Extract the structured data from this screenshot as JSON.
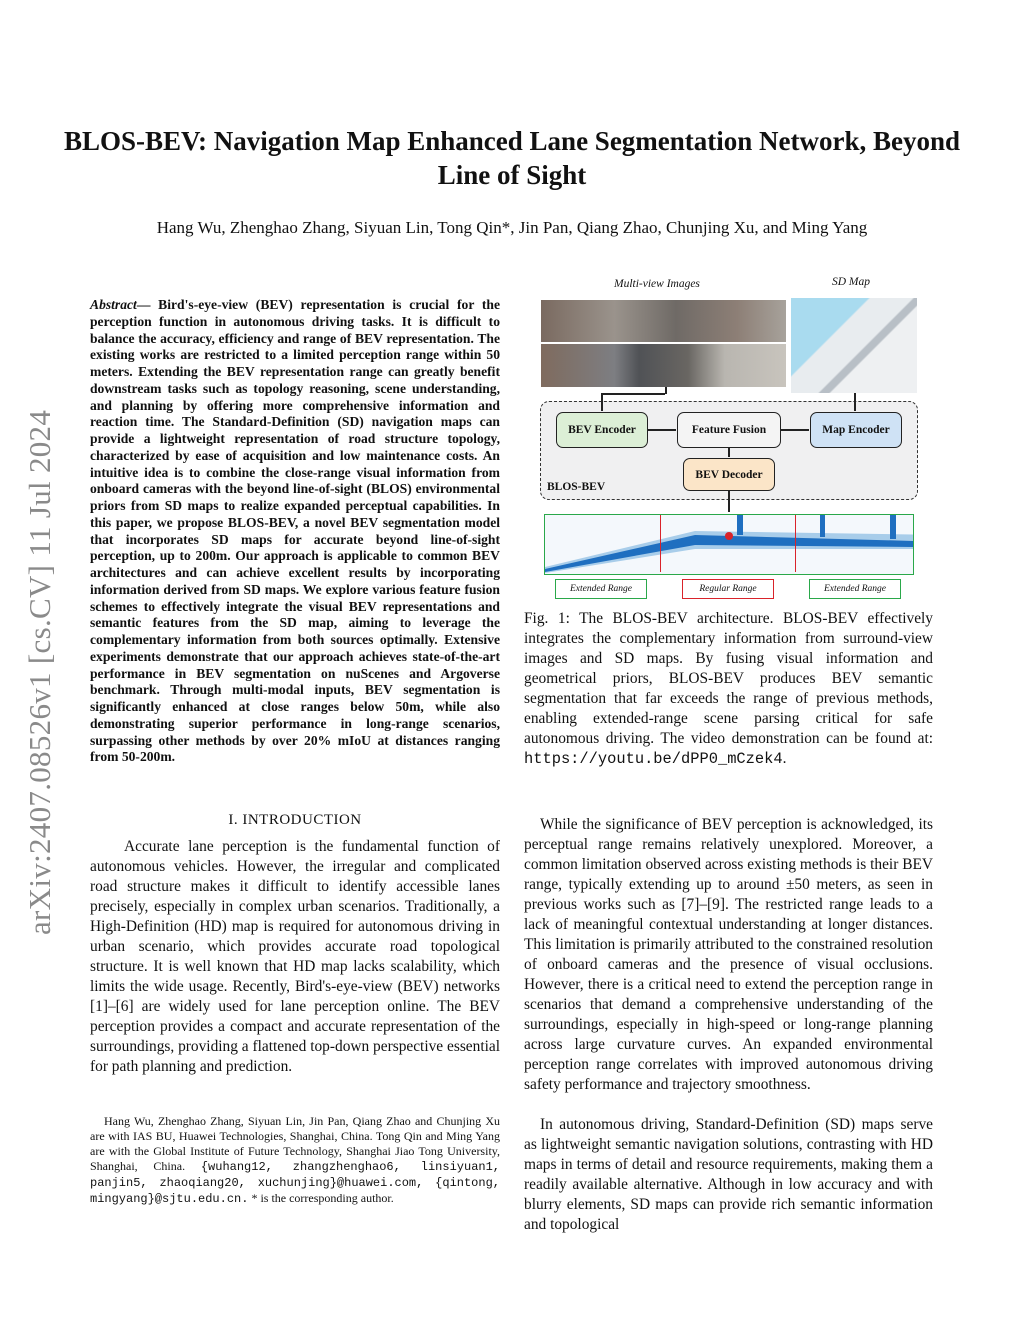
{
  "title": "BLOS-BEV: Navigation Map Enhanced Lane Segmentation Network, Beyond Line of Sight",
  "authors": "Hang Wu, Zhenghao Zhang, Siyuan Lin, Tong Qin*, Jin Pan, Qiang Zhao, Chunjing Xu, and Ming Yang",
  "arxiv_stamp": "arXiv:2407.08526v1  [cs.CV]  11 Jul 2024",
  "abstract": {
    "label": "Abstract",
    "text": "— Bird's-eye-view (BEV) representation is crucial for the perception function in autonomous driving tasks. It is difficult to balance the accuracy, efficiency and range of BEV representation. The existing works are restricted to a limited perception range within 50 meters. Extending the BEV representation range can greatly benefit downstream tasks such as topology reasoning, scene understanding, and planning by offering more comprehensive information and reaction time. The Standard-Definition (SD) navigation maps can provide a lightweight representation of road structure topology, characterized by ease of acquisition and low maintenance costs. An intuitive idea is to combine the close-range visual information from onboard cameras with the beyond line-of-sight (BLOS) environmental priors from SD maps to realize expanded perceptual capabilities. In this paper, we propose BLOS-BEV, a novel BEV segmentation model that incorporates SD maps for accurate beyond line-of-sight perception, up to 200m. Our approach is applicable to common BEV architectures and can achieve excellent results by incorporating information derived from SD maps. We explore various feature fusion schemes to effectively integrate the visual BEV representations and semantic features from the SD map, aiming to leverage the complementary information from both sources optimally. Extensive experiments demonstrate that our approach achieves state-of-the-art performance in BEV segmentation on nuScenes and Argoverse benchmark. Through multi-modal inputs, BEV segmentation is significantly enhanced at close ranges below 50m, while also demonstrating superior performance in long-range scenarios, surpassing other methods by over 20% mIoU at distances ranging from 50-200m."
  },
  "intro": {
    "heading": "I. INTRODUCTION",
    "text": "Accurate lane perception is the fundamental function of autonomous vehicles. However, the irregular and complicated road structure makes it difficult to identify accessible lanes precisely, especially in complex urban scenarios. Traditionally, a High-Definition (HD) map is required for autonomous driving in urban scenario, which provides accurate road topological structure. It is well known that HD map lacks scalability, which limits the wide usage. Recently, Bird's-eye-view (BEV) networks [1]–[6] are widely used for lane perception online. The BEV perception provides a compact and accurate representation of the surroundings, providing a flattened top-down perspective essential for path planning and prediction."
  },
  "footnote": {
    "text": "Hang Wu, Zhenghao Zhang, Siyuan Lin, Jin Pan, Qiang Zhao and Chunjing Xu are with IAS BU, Huawei Technologies, Shanghai, China. Tong Qin and Ming Yang are with the Global Institute of Future Technology, Shanghai Jiao Tong University, Shanghai, China. ",
    "emails": "{wuhang12, zhangzhenghao6, linsiyuan1, panjin5, zhaoqiang20, xuchunjing}@huawei.com, {qintong, mingyang}@sjtu.edu.cn.",
    "tail": " * is the corresponding author."
  },
  "figure": {
    "label_images": "Multi-view Images",
    "label_map": "SD Map",
    "bev_encoder": "BEV Encoder",
    "feature_fusion": "Feature Fusion",
    "map_encoder": "Map Encoder",
    "bev_decoder": "BEV Decoder",
    "group": "BLOS-BEV",
    "range_left": "Extended Range",
    "range_mid": "Regular Range",
    "range_right": "Extended Range",
    "colors": {
      "encoder": "#dcefd6",
      "fusion": "#f4f4f4",
      "map": "#cfe2f5",
      "decoder": "#fbe5c8",
      "extended": "#2aa84a",
      "regular": "#d9232a",
      "lane": "#1f6fc0"
    }
  },
  "caption": {
    "text": "Fig. 1: The BLOS-BEV architecture. BLOS-BEV effectively integrates the complementary information from surround-view images and SD maps. By fusing visual information and geometrical priors, BLOS-BEV produces BEV semantic segmentation that far exceeds the range of previous methods, enabling extended-range scene parsing critical for safe autonomous driving. The video demonstration can be found at: ",
    "url": "https://youtu.be/dPP0_mCzek4",
    "end": "."
  },
  "right_p1": "While the significance of BEV perception is acknowledged, its perceptual range remains relatively unexplored. Moreover, a common limitation observed across existing methods is their BEV range, typically extending up to around ±50 meters, as seen in previous works such as [7]–[9]. The restricted range leads to a lack of meaningful contextual understanding at longer distances. This limitation is primarily attributed to the constrained resolution of onboard cameras and the presence of visual occlusions. However, there is a critical need to extend the perception range in scenarios that demand a comprehensive understanding of the surroundings, especially in high-speed or long-range planning across large curvature curves. An expanded environmental perception range correlates with improved autonomous driving safety performance and trajectory smoothness.",
  "right_p2": "In autonomous driving, Standard-Definition (SD) maps serve as lightweight semantic navigation solutions, contrasting with HD maps in terms of detail and resource requirements, making them a readily available alternative. Although in low accuracy and with blurry elements, SD maps can provide rich semantic information and topological"
}
